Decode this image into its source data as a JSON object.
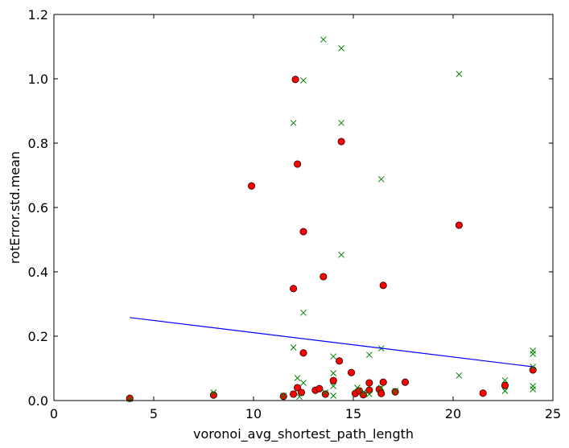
{
  "chart_data": {
    "type": "scatter",
    "title": "",
    "xlabel": "voronoi_avg_shortest_path_length",
    "ylabel": "rotError.std.mean",
    "xlim": [
      0,
      25
    ],
    "ylim": [
      0,
      1.2
    ],
    "x_ticks": [
      "0",
      "5",
      "10",
      "15",
      "20",
      "25"
    ],
    "y_ticks": [
      "0.0",
      "0.2",
      "0.4",
      "0.6",
      "0.8",
      "1.0",
      "1.2"
    ],
    "grid": false,
    "legend": "none",
    "series": [
      {
        "marker": "circle",
        "color": "#ff0000",
        "points": [
          [
            3.8,
            0.007
          ],
          [
            8.0,
            0.017
          ],
          [
            9.9,
            0.667
          ],
          [
            11.5,
            0.013
          ],
          [
            12.0,
            0.02
          ],
          [
            12.0,
            0.348
          ],
          [
            12.1,
            0.998
          ],
          [
            12.2,
            0.735
          ],
          [
            12.2,
            0.04
          ],
          [
            12.4,
            0.025
          ],
          [
            12.5,
            0.525
          ],
          [
            12.5,
            0.148
          ],
          [
            13.1,
            0.032
          ],
          [
            13.3,
            0.037
          ],
          [
            13.5,
            0.385
          ],
          [
            13.6,
            0.02
          ],
          [
            14.0,
            0.062
          ],
          [
            14.3,
            0.123
          ],
          [
            14.4,
            0.805
          ],
          [
            14.9,
            0.087
          ],
          [
            15.1,
            0.022
          ],
          [
            15.3,
            0.03
          ],
          [
            15.5,
            0.018
          ],
          [
            15.8,
            0.055
          ],
          [
            15.8,
            0.032
          ],
          [
            16.3,
            0.035
          ],
          [
            16.4,
            0.022
          ],
          [
            16.5,
            0.358
          ],
          [
            16.5,
            0.057
          ],
          [
            17.1,
            0.027
          ],
          [
            17.6,
            0.057
          ],
          [
            20.3,
            0.545
          ],
          [
            21.5,
            0.023
          ],
          [
            22.6,
            0.047
          ],
          [
            24.0,
            0.095
          ]
        ]
      },
      {
        "marker": "x",
        "color": "#008000",
        "points": [
          [
            3.8,
            0.005
          ],
          [
            8.0,
            0.025
          ],
          [
            11.5,
            0.015
          ],
          [
            12.0,
            0.863
          ],
          [
            12.0,
            0.165
          ],
          [
            12.2,
            0.07
          ],
          [
            12.3,
            0.012
          ],
          [
            12.5,
            0.995
          ],
          [
            12.5,
            0.273
          ],
          [
            12.5,
            0.055
          ],
          [
            13.5,
            1.122
          ],
          [
            13.6,
            0.025
          ],
          [
            14.0,
            0.137
          ],
          [
            14.0,
            0.085
          ],
          [
            14.0,
            0.045
          ],
          [
            14.0,
            0.015
          ],
          [
            14.4,
            1.095
          ],
          [
            14.4,
            0.863
          ],
          [
            14.4,
            0.453
          ],
          [
            15.2,
            0.04
          ],
          [
            15.5,
            0.025
          ],
          [
            15.8,
            0.142
          ],
          [
            15.8,
            0.02
          ],
          [
            16.4,
            0.688
          ],
          [
            16.4,
            0.162
          ],
          [
            16.4,
            0.04
          ],
          [
            17.1,
            0.03
          ],
          [
            20.3,
            1.015
          ],
          [
            20.3,
            0.078
          ],
          [
            22.6,
            0.063
          ],
          [
            22.6,
            0.03
          ],
          [
            24.0,
            0.155
          ],
          [
            24.0,
            0.145
          ],
          [
            24.0,
            0.105
          ],
          [
            24.0,
            0.045
          ],
          [
            24.0,
            0.035
          ]
        ]
      },
      {
        "type": "line",
        "color": "#0000ff",
        "points": [
          [
            3.8,
            0.258
          ],
          [
            24.0,
            0.105
          ]
        ]
      }
    ]
  }
}
